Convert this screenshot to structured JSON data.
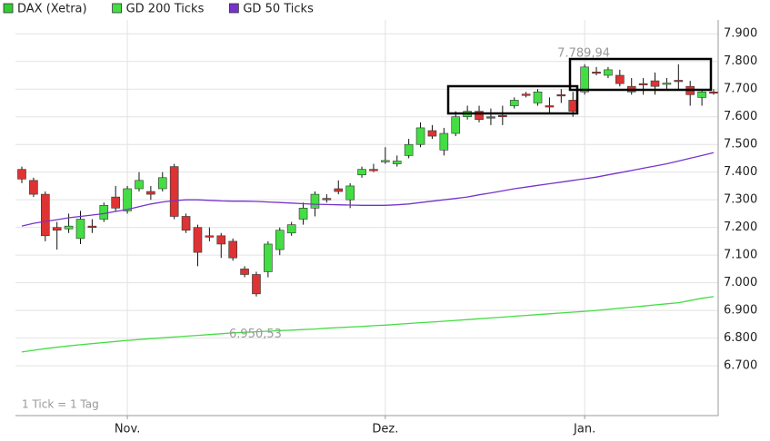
{
  "chart_data": {
    "type": "candlestick",
    "categories": [
      null,
      null,
      null,
      null,
      null,
      null,
      null,
      null,
      null,
      "Nov.",
      null,
      null,
      null,
      null,
      null,
      null,
      null,
      null,
      null,
      null,
      null,
      null,
      null,
      null,
      null,
      null,
      null,
      null,
      null,
      null,
      null,
      "Dez.",
      null,
      null,
      null,
      null,
      null,
      null,
      null,
      null,
      null,
      null,
      null,
      null,
      null,
      null,
      null,
      null,
      "Jan.",
      null,
      null,
      null,
      null,
      null,
      null,
      null,
      null,
      null,
      null,
      null
    ],
    "series": [
      {
        "name": "DAX (Xetra)",
        "color": "#33cc33",
        "up_color": "#44dd44",
        "down_color": "#dd3333",
        "open": [
          7410,
          7370,
          7320,
          7200,
          7195,
          7160,
          7205,
          7230,
          7310,
          7260,
          7340,
          7330,
          7340,
          7420,
          7240,
          7200,
          7170,
          7170,
          7150,
          7050,
          7030,
          7040,
          7120,
          7180,
          7230,
          7270,
          7305,
          7340,
          7300,
          7390,
          7410,
          7440,
          7430,
          7460,
          7500,
          7550,
          7480,
          7540,
          7600,
          7620,
          7600,
          7605,
          7640,
          7682,
          7650,
          7640,
          7680,
          7660,
          7690,
          7762,
          7750,
          7750,
          7710,
          7720,
          7730,
          7720,
          7732,
          7710,
          7670,
          7690
        ],
        "high": [
          7420,
          7380,
          7330,
          7220,
          7250,
          7260,
          7230,
          7290,
          7350,
          7350,
          7400,
          7350,
          7400,
          7430,
          7250,
          7210,
          7200,
          7180,
          7160,
          7060,
          7040,
          7150,
          7200,
          7220,
          7290,
          7330,
          7320,
          7370,
          7360,
          7420,
          7430,
          7490,
          7460,
          7520,
          7580,
          7570,
          7560,
          7620,
          7640,
          7640,
          7630,
          7640,
          7670,
          7690,
          7700,
          7670,
          7700,
          7690,
          7789.94,
          7780,
          7780,
          7770,
          7740,
          7740,
          7760,
          7740,
          7790,
          7730,
          7700,
          7700
        ],
        "low": [
          7360,
          7310,
          7150,
          7120,
          7180,
          7140,
          7180,
          7220,
          7260,
          7250,
          7330,
          7300,
          7330,
          7230,
          7180,
          7060,
          7150,
          7090,
          7080,
          7020,
          6950.53,
          7020,
          7100,
          7170,
          7210,
          7240,
          7290,
          7320,
          7270,
          7380,
          7400,
          7430,
          7420,
          7450,
          7490,
          7520,
          7460,
          7530,
          7590,
          7580,
          7570,
          7570,
          7630,
          7670,
          7640,
          7610,
          7650,
          7600,
          7680,
          7750,
          7740,
          7710,
          7680,
          7680,
          7680,
          7700,
          7700,
          7640,
          7640,
          7680
        ],
        "close": [
          7375,
          7320,
          7170,
          7190,
          7205,
          7230,
          7200,
          7280,
          7270,
          7340,
          7370,
          7320,
          7380,
          7240,
          7190,
          7110,
          7165,
          7140,
          7090,
          7030,
          6960,
          7140,
          7190,
          7210,
          7270,
          7320,
          7300,
          7330,
          7350,
          7410,
          7408,
          7442,
          7440,
          7500,
          7560,
          7530,
          7540,
          7600,
          7620,
          7590,
          7598,
          7603,
          7660,
          7680,
          7690,
          7638,
          7678,
          7620,
          7780,
          7758,
          7770,
          7720,
          7690,
          7718,
          7710,
          7722,
          7730,
          7680,
          7690,
          7688
        ]
      },
      {
        "name": "GD 200 Ticks",
        "color": "#44dd44",
        "values": [
          6750,
          6756,
          6762,
          6767,
          6772,
          6776,
          6780,
          6784,
          6788,
          6792,
          6795,
          6798,
          6801,
          6804,
          6807,
          6810,
          6813,
          6816,
          6819,
          6821,
          6823,
          6825,
          6827,
          6829,
          6831,
          6833,
          6836,
          6838,
          6840,
          6842,
          6845,
          6847,
          6850,
          6853,
          6856,
          6858,
          6861,
          6864,
          6867,
          6870,
          6873,
          6876,
          6879,
          6882,
          6885,
          6888,
          6891,
          6894,
          6897,
          6900,
          6904,
          6908,
          6912,
          6916,
          6920,
          6924,
          6928,
          6936,
          6944,
          6950
        ]
      },
      {
        "name": "GD 50 Ticks",
        "color": "#7733cc",
        "values": [
          7205,
          7215,
          7222,
          7228,
          7235,
          7240,
          7245,
          7250,
          7258,
          7265,
          7275,
          7285,
          7292,
          7297,
          7300,
          7300,
          7298,
          7296,
          7295,
          7295,
          7294,
          7292,
          7290,
          7288,
          7286,
          7284,
          7283,
          7282,
          7281,
          7280,
          7280,
          7280,
          7282,
          7285,
          7290,
          7295,
          7300,
          7305,
          7310,
          7318,
          7325,
          7332,
          7340,
          7346,
          7352,
          7358,
          7364,
          7370,
          7376,
          7382,
          7390,
          7398,
          7406,
          7414,
          7422,
          7430,
          7440,
          7450,
          7460,
          7470
        ]
      }
    ],
    "ylim": [
      6520,
      7950
    ],
    "yticks": [
      {
        "value": 6700,
        "label": "6.700"
      },
      {
        "value": 6800,
        "label": "6.800"
      },
      {
        "value": 6900,
        "label": "6.900"
      },
      {
        "value": 7000,
        "label": "7.000"
      },
      {
        "value": 7100,
        "label": "7.100"
      },
      {
        "value": 7200,
        "label": "7.200"
      },
      {
        "value": 7300,
        "label": "7.300"
      },
      {
        "value": 7400,
        "label": "7.400"
      },
      {
        "value": 7500,
        "label": "7.500"
      },
      {
        "value": 7600,
        "label": "7.600"
      },
      {
        "value": 7700,
        "label": "7.700"
      },
      {
        "value": 7800,
        "label": "7.800"
      },
      {
        "value": 7900,
        "label": "7.900"
      }
    ],
    "annotations": [
      {
        "label": "7.789,94",
        "value": 7789.94
      },
      {
        "label": "6.950,53",
        "value": 6950.53
      }
    ],
    "note": "1 Tick = 1 Tag",
    "grid": true
  }
}
